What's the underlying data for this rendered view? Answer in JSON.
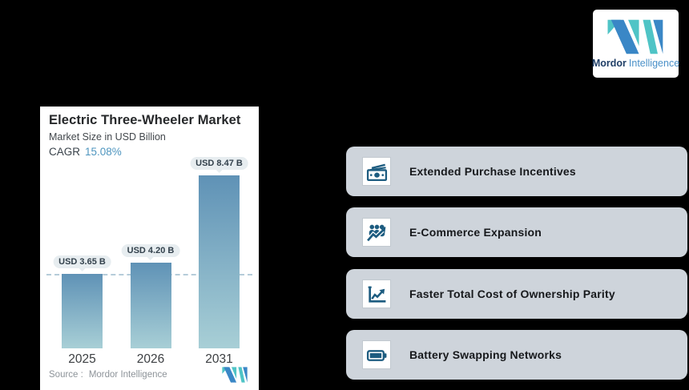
{
  "brand": {
    "name_primary": "Mordor",
    "name_secondary": "Intelligence",
    "colors": {
      "teal": "#4fc4c6",
      "blue": "#3a87c6",
      "navy": "#1f3e66",
      "light_blue": "#4a90c8"
    }
  },
  "chart_data": {
    "type": "bar",
    "title": "Electric Three-Wheeler Market",
    "subtitle": "Market Size in USD Billion",
    "cagr_label": "CAGR",
    "cagr_value": "15.08%",
    "categories": [
      "2025",
      "2026",
      "2031"
    ],
    "values": [
      3.65,
      4.2,
      8.47
    ],
    "value_labels": [
      "USD 3.65 B",
      "USD 4.20 B",
      "USD 8.47 B"
    ],
    "unit": "USD Billion",
    "ylim": [
      0,
      10
    ],
    "grid": false,
    "reference_line": 3.65,
    "bar_gradient_top": "#5f92b6",
    "bar_gradient_bottom": "#a8cfd6",
    "source_label": "Source :",
    "source_value": "Mordor Intelligence"
  },
  "drivers": [
    {
      "icon": "cash-icon",
      "label": "Extended Purchase Incentives"
    },
    {
      "icon": "ecommerce-growth-icon",
      "label": "E-Commerce Expansion"
    },
    {
      "icon": "line-chart-icon",
      "label": "Faster Total Cost of Ownership Parity"
    },
    {
      "icon": "battery-icon",
      "label": "Battery Swapping Networks"
    }
  ]
}
